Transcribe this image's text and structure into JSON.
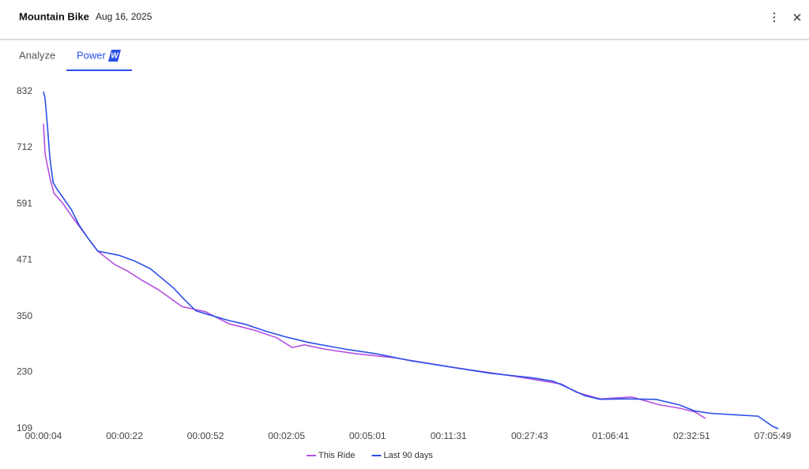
{
  "header": {
    "title": "Mountain Bike",
    "date": "Aug 16, 2025"
  },
  "tabs": [
    "Analyze",
    "Power"
  ],
  "chart_data": {
    "type": "line",
    "ylim": [
      109,
      832
    ],
    "yticks": [
      832,
      712,
      591,
      471,
      350,
      230,
      109
    ],
    "xlim": [
      0,
      9.1
    ],
    "xticks": [
      {
        "value": 0,
        "label": "00:00:04"
      },
      {
        "value": 1,
        "label": "00:00:22"
      },
      {
        "value": 2,
        "label": "00:00:52"
      },
      {
        "value": 3,
        "label": "00:02:05"
      },
      {
        "value": 4,
        "label": "00:05:01"
      },
      {
        "value": 5,
        "label": "00:11:31"
      },
      {
        "value": 6,
        "label": "00:27:43"
      },
      {
        "value": 7,
        "label": "01:06:41"
      },
      {
        "value": 8,
        "label": "02:32:51"
      },
      {
        "value": 9,
        "label": "07:05:49"
      }
    ],
    "series": [
      {
        "name": "This Ride",
        "color": "#b44fe0",
        "x": [
          0,
          0.02,
          0.08,
          0.13,
          0.24,
          0.39,
          0.54,
          0.67,
          0.88,
          1.02,
          1.22,
          1.42,
          1.71,
          2.0,
          2.29,
          2.59,
          2.88,
          3.07,
          3.22,
          3.46,
          3.85,
          4.34,
          5.07,
          5.8,
          6.39,
          6.58,
          6.87,
          7.26,
          7.61,
          7.85,
          8.04,
          8.17
        ],
        "values": [
          763,
          698,
          647,
          614,
          592,
          555,
          520,
          490,
          461,
          449,
          427,
          407,
          371,
          360,
          334,
          321,
          304,
          283,
          289,
          280,
          270,
          261,
          240,
          222,
          205,
          187,
          173,
          177,
          160,
          153,
          145,
          131
        ]
      },
      {
        "name": "Last 90 days",
        "color": "#2a50e8",
        "x": [
          0,
          0.02,
          0.05,
          0.08,
          0.12,
          0.17,
          0.24,
          0.34,
          0.44,
          0.54,
          0.67,
          0.93,
          1.12,
          1.32,
          1.46,
          1.61,
          1.75,
          1.88,
          2.05,
          2.29,
          2.49,
          2.73,
          2.97,
          3.27,
          3.56,
          3.75,
          4.1,
          4.53,
          5.07,
          5.51,
          6.04,
          6.29,
          6.41,
          6.68,
          6.87,
          7.17,
          7.56,
          7.85,
          8.04,
          8.24,
          8.53,
          8.82,
          9.0,
          9.07
        ],
        "values": [
          832,
          817,
          757,
          688,
          637,
          622,
          605,
          580,
          546,
          520,
          490,
          481,
          469,
          452,
          432,
          410,
          384,
          362,
          353,
          341,
          333,
          319,
          307,
          294,
          285,
          279,
          270,
          255,
          240,
          228,
          218,
          211,
          202,
          180,
          172,
          173,
          172,
          160,
          147,
          142,
          139,
          136,
          114,
          109
        ]
      }
    ]
  }
}
